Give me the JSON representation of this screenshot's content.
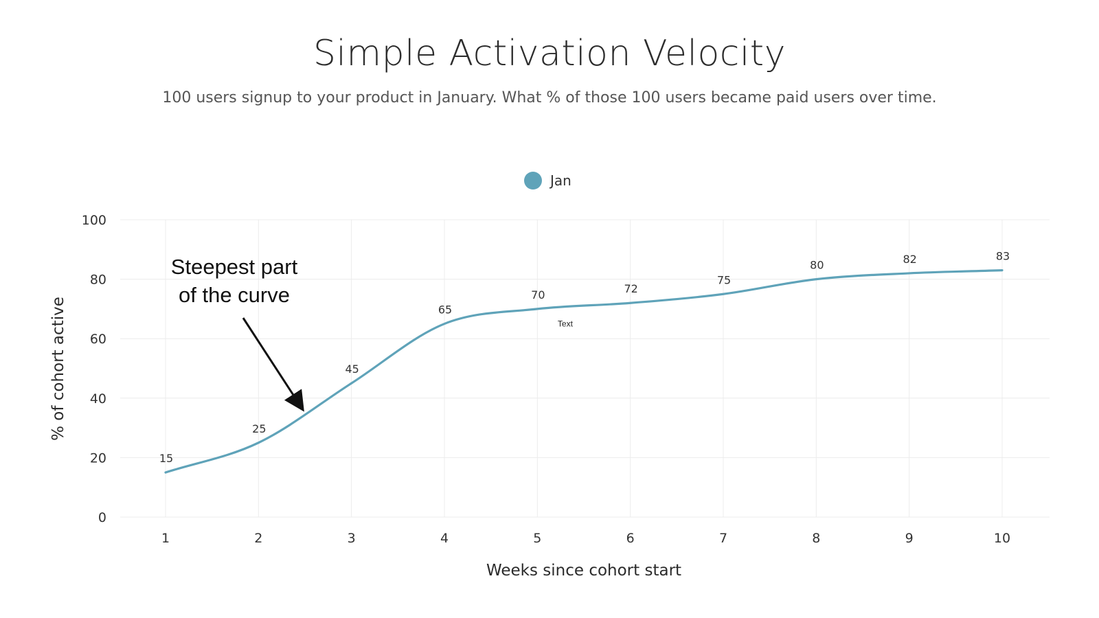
{
  "chart_data": {
    "type": "line",
    "title": "Simple Activation Velocity",
    "subtitle": "100 users signup to your product in January. What % of those 100 users became paid users over time.",
    "xlabel": "Weeks since cohort start",
    "ylabel": "% of cohort active",
    "x": [
      1,
      2,
      3,
      4,
      5,
      6,
      7,
      8,
      9,
      10
    ],
    "x_tick_labels": [
      "1",
      "2",
      "3",
      "4",
      "5",
      "6",
      "7",
      "8",
      "9",
      "10"
    ],
    "y_ticks": [
      0,
      20,
      40,
      60,
      80,
      100
    ],
    "y_tick_labels": [
      "0",
      "20",
      "40",
      "60",
      "80",
      "100"
    ],
    "ylim": [
      0,
      100
    ],
    "series": [
      {
        "name": "Jan",
        "values": [
          15,
          25,
          45,
          65,
          70,
          72,
          75,
          80,
          82,
          83
        ],
        "data_labels": [
          "15",
          "25",
          "45",
          "65",
          "70",
          "72",
          "75",
          "80",
          "82",
          "83"
        ]
      }
    ],
    "grid": true,
    "legend": {
      "position": "top-center",
      "label": "Jan"
    },
    "annotations": [
      {
        "text_line_1": "Steepest part",
        "text_line_2": "of the curve",
        "arrow_points_to_x": 2.5,
        "arrow_points_to_y": 33
      },
      {
        "text": "Text",
        "x": 5.3,
        "y": 65
      }
    ],
    "colors": {
      "series": "#5fa3b9",
      "grid": "#ececec",
      "text": "#333333"
    }
  }
}
